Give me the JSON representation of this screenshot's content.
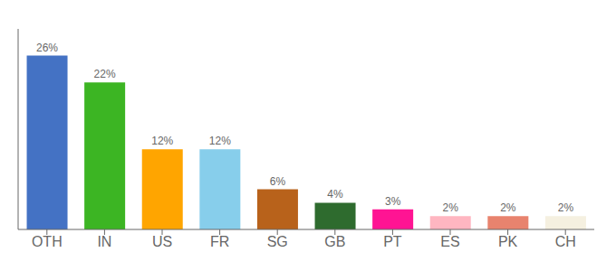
{
  "chart_data": {
    "type": "bar",
    "categories": [
      "OTH",
      "IN",
      "US",
      "FR",
      "SG",
      "GB",
      "PT",
      "ES",
      "PK",
      "CH"
    ],
    "values": [
      26,
      22,
      12,
      12,
      6,
      4,
      3,
      2,
      2,
      2
    ],
    "value_labels": [
      "26%",
      "22%",
      "12%",
      "12%",
      "6%",
      "4%",
      "3%",
      "2%",
      "2%",
      "2%"
    ],
    "colors": [
      "#4472C4",
      "#3CB523",
      "#FFA500",
      "#87CEEB",
      "#B8621B",
      "#2E6B2E",
      "#FF1493",
      "#FFB6C1",
      "#E8836E",
      "#F5F0E0"
    ],
    "ylim": [
      0,
      30
    ],
    "data_labels": true,
    "tick_labels": "x",
    "grid": false
  }
}
